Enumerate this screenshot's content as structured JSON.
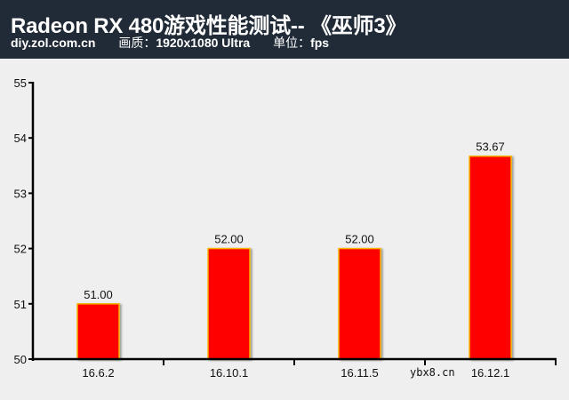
{
  "header": {
    "title": "Radeon RX 480游戏性能测试-- 《巫师3》",
    "source": "diy.zol.com.cn",
    "quality_label": "画质：",
    "quality_value": "1920x1080 Ultra",
    "unit_label": "单位：",
    "unit_value": "fps"
  },
  "watermark": "ybx8.cn",
  "colors": {
    "header_bg": "#212b38",
    "plot_bg": "#efefef",
    "bar_fill": "#ff0000",
    "bar_border": "#f5b400",
    "axis": "#000000"
  },
  "chart_data": {
    "type": "bar",
    "title": "Radeon RX 480游戏性能测试-- 《巫师3》",
    "subtitle": "diy.zol.com.cn 画质：1920x1080 Ultra 单位：fps",
    "categories": [
      "16.6.2",
      "16.10.1",
      "16.11.5",
      "16.12.1"
    ],
    "values": [
      51.0,
      52.0,
      52.0,
      53.67
    ],
    "value_labels": [
      "51.00",
      "52.00",
      "52.00",
      "53.67"
    ],
    "xlabel": "",
    "ylabel": "fps",
    "ylim": [
      50,
      55
    ],
    "yticks": [
      50,
      51,
      52,
      53,
      54,
      55
    ],
    "grid": false,
    "legend": null
  }
}
